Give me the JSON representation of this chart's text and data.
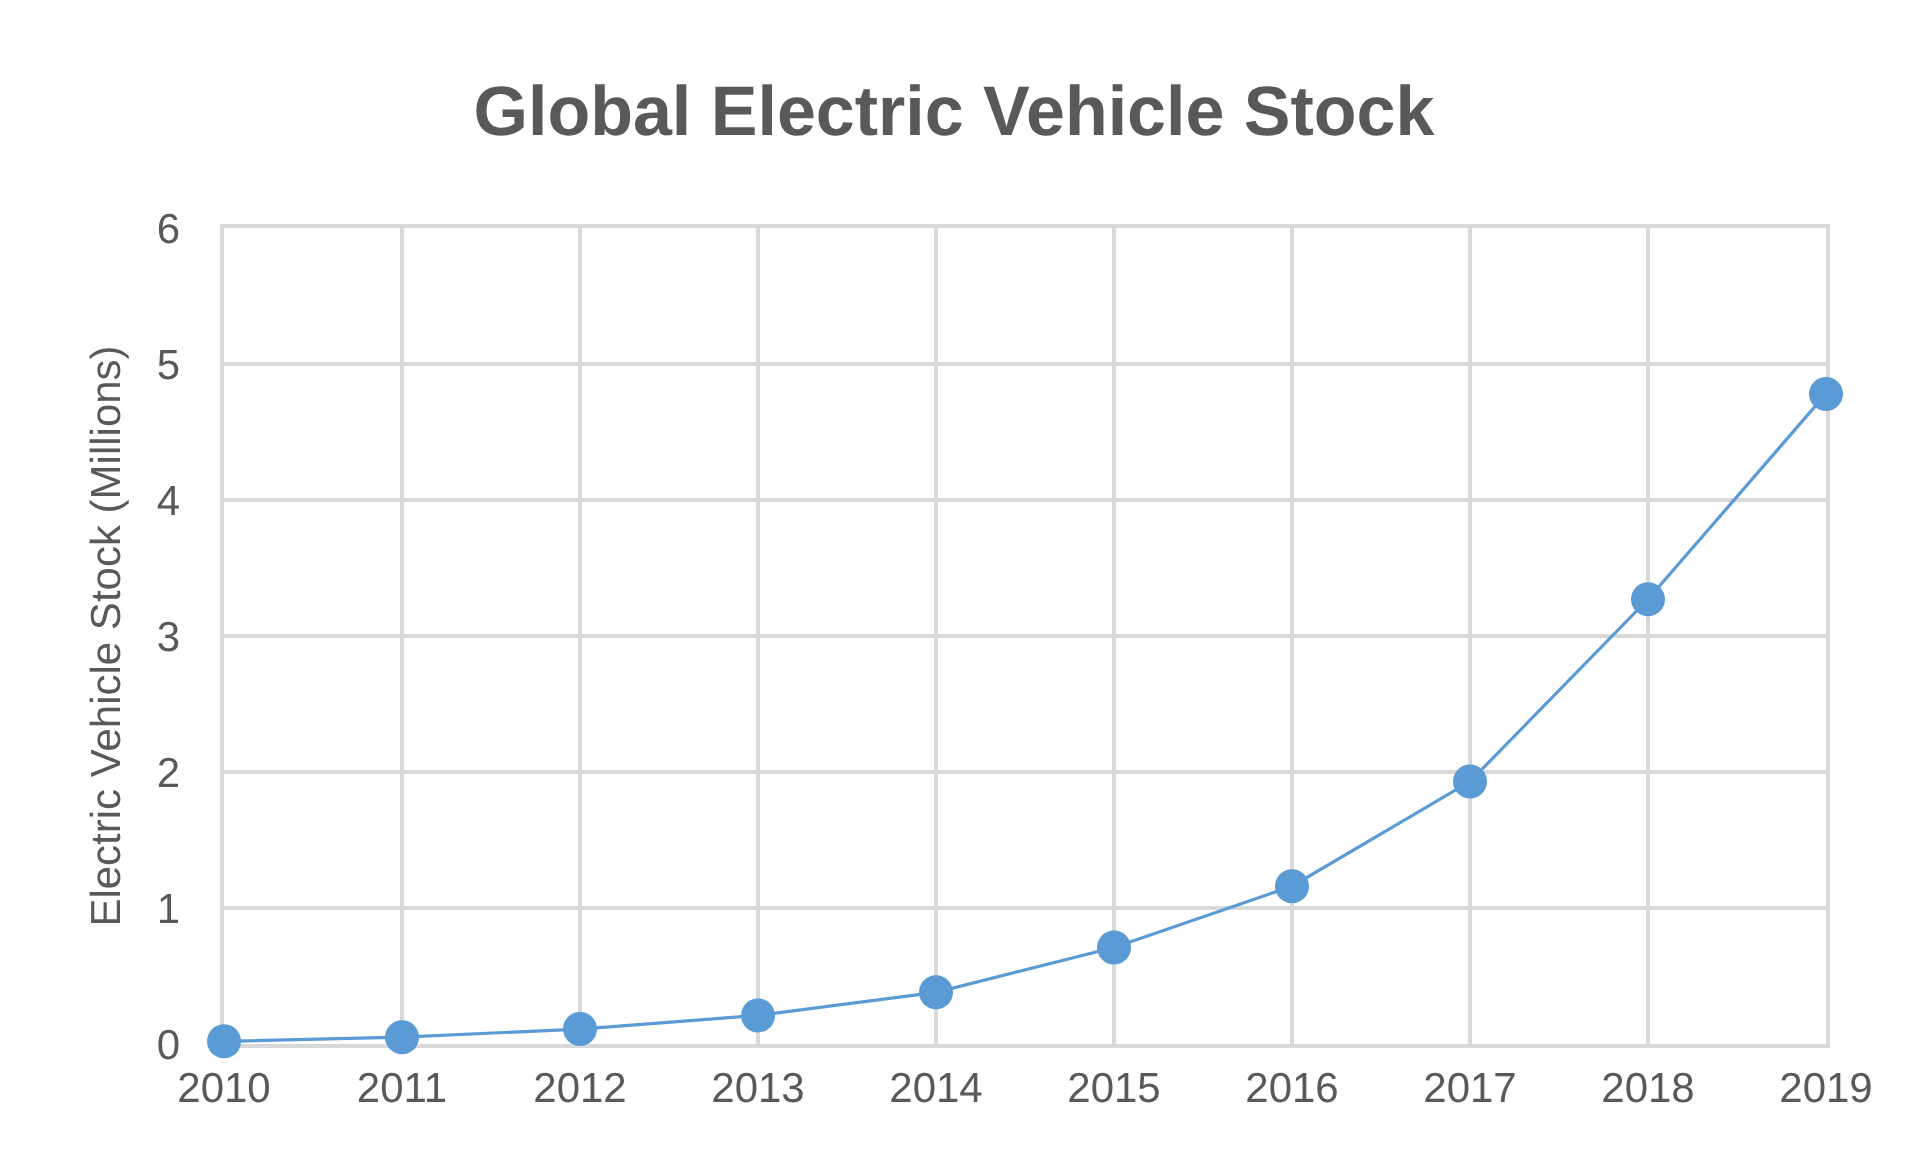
{
  "chart_data": {
    "type": "line",
    "title": "Global Electric Vehicle Stock",
    "ylabel": "Electric Vehicle Stock (Millions)",
    "x": [
      2010,
      2011,
      2012,
      2013,
      2014,
      2015,
      2016,
      2017,
      2018,
      2019
    ],
    "series": [
      {
        "color": "#5b9bd5",
        "values": [
          0.02,
          0.05,
          0.11,
          0.21,
          0.38,
          0.71,
          1.16,
          1.93,
          3.27,
          4.78
        ]
      }
    ],
    "xlim": [
      2010,
      2019
    ],
    "xticks": [
      2010,
      2011,
      2012,
      2013,
      2014,
      2015,
      2016,
      2017,
      2018,
      2019
    ],
    "ylim": [
      0,
      6
    ],
    "yticks": [
      0,
      1,
      2,
      3,
      4,
      5,
      6
    ],
    "grid": true,
    "marker": "circle",
    "line_style": "solid"
  }
}
